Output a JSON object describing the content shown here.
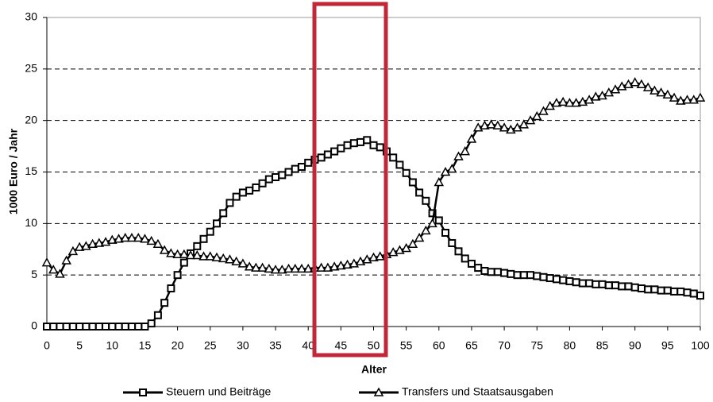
{
  "chart_data": {
    "type": "line",
    "xlabel": "Alter",
    "ylabel": "1000 Euro / Jahr",
    "x": [
      0,
      1,
      2,
      3,
      4,
      5,
      6,
      7,
      8,
      9,
      10,
      11,
      12,
      13,
      14,
      15,
      16,
      17,
      18,
      19,
      20,
      21,
      22,
      23,
      24,
      25,
      26,
      27,
      28,
      29,
      30,
      31,
      32,
      33,
      34,
      35,
      36,
      37,
      38,
      39,
      40,
      41,
      42,
      43,
      44,
      45,
      46,
      47,
      48,
      49,
      50,
      51,
      52,
      53,
      54,
      55,
      56,
      57,
      58,
      59,
      60,
      61,
      62,
      63,
      64,
      65,
      66,
      67,
      68,
      69,
      70,
      71,
      72,
      73,
      74,
      75,
      76,
      77,
      78,
      79,
      80,
      81,
      82,
      83,
      84,
      85,
      86,
      87,
      88,
      89,
      90,
      91,
      92,
      93,
      94,
      95,
      96,
      97,
      98,
      99,
      100
    ],
    "series": [
      {
        "name": "Steuern und Beiträge",
        "color": "#000000",
        "marker": "square",
        "values": [
          0,
          0,
          0,
          0,
          0,
          0,
          0,
          0,
          0,
          0,
          0,
          0,
          0,
          0,
          0,
          0,
          0.3,
          1.1,
          2.3,
          3.7,
          5.0,
          6.2,
          7.1,
          7.8,
          8.5,
          9.2,
          10.0,
          11.0,
          12.0,
          12.6,
          13.0,
          13.2,
          13.5,
          13.9,
          14.3,
          14.5,
          14.7,
          15.0,
          15.3,
          15.5,
          15.9,
          16.2,
          16.4,
          16.7,
          17.0,
          17.3,
          17.6,
          17.8,
          17.9,
          18.1,
          17.6,
          17.4,
          17.0,
          16.4,
          15.7,
          14.9,
          14.0,
          13.0,
          12.2,
          11.0,
          10.3,
          9.1,
          8.1,
          7.3,
          6.6,
          6.1,
          5.7,
          5.4,
          5.3,
          5.3,
          5.2,
          5.1,
          5.0,
          5.0,
          5.0,
          4.9,
          4.8,
          4.7,
          4.6,
          4.5,
          4.4,
          4.3,
          4.2,
          4.2,
          4.1,
          4.1,
          4.0,
          4.0,
          3.9,
          3.9,
          3.8,
          3.7,
          3.6,
          3.6,
          3.5,
          3.5,
          3.4,
          3.4,
          3.3,
          3.2,
          3.0
        ]
      },
      {
        "name": "Transfers und Staatsausgaben",
        "color": "#000000",
        "marker": "triangle",
        "values": [
          6.2,
          5.5,
          5.1,
          6.4,
          7.3,
          7.7,
          7.8,
          8.0,
          8.1,
          8.2,
          8.4,
          8.5,
          8.6,
          8.6,
          8.6,
          8.5,
          8.3,
          8.0,
          7.4,
          7.1,
          7.0,
          7.0,
          6.9,
          6.9,
          6.8,
          6.8,
          6.7,
          6.6,
          6.5,
          6.3,
          6.1,
          5.8,
          5.7,
          5.7,
          5.6,
          5.5,
          5.5,
          5.6,
          5.6,
          5.6,
          5.6,
          5.7,
          5.7,
          5.7,
          5.8,
          5.9,
          6.0,
          6.1,
          6.3,
          6.5,
          6.7,
          6.8,
          7.0,
          7.2,
          7.4,
          7.6,
          8.0,
          8.6,
          9.3,
          10.0,
          14.0,
          15.0,
          15.3,
          16.5,
          17.0,
          18.2,
          19.3,
          19.5,
          19.6,
          19.5,
          19.3,
          19.1,
          19.3,
          19.6,
          20.0,
          20.4,
          20.9,
          21.4,
          21.7,
          21.8,
          21.7,
          21.7,
          21.8,
          22.0,
          22.3,
          22.4,
          22.7,
          23.0,
          23.3,
          23.5,
          23.7,
          23.5,
          23.2,
          22.9,
          22.7,
          22.5,
          22.2,
          21.9,
          22.0,
          22.0,
          22.2
        ]
      }
    ],
    "xlim": [
      0,
      100
    ],
    "xticks": [
      0,
      5,
      10,
      15,
      20,
      25,
      30,
      35,
      40,
      45,
      50,
      55,
      60,
      65,
      70,
      75,
      80,
      85,
      90,
      95,
      100
    ],
    "ylim": [
      0,
      30
    ],
    "yticks": [
      0,
      5,
      10,
      15,
      20,
      25,
      30
    ],
    "grid": true,
    "legend": "bottom"
  }
}
